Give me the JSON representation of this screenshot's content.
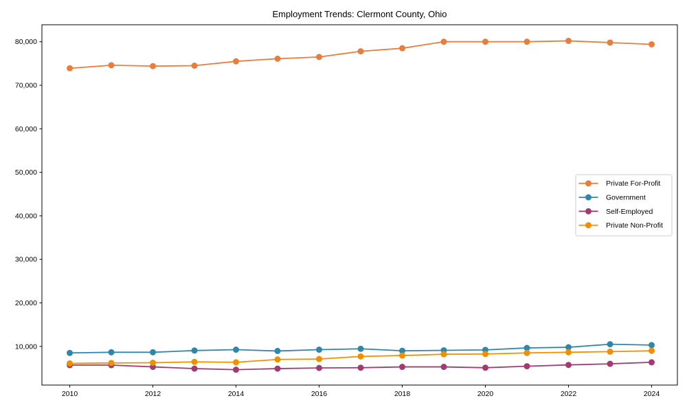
{
  "chart_data": {
    "type": "line",
    "title": "Employment Trends: Clermont County, Ohio",
    "xlabel": "",
    "ylabel": "",
    "x": [
      2010,
      2011,
      2012,
      2013,
      2014,
      2015,
      2016,
      2017,
      2018,
      2019,
      2020,
      2021,
      2022,
      2023,
      2024
    ],
    "series": [
      {
        "name": "Private For-Profit",
        "color": "#E87D3C",
        "values": [
          73900,
          74600,
          74400,
          74500,
          75500,
          76100,
          76500,
          77800,
          78500,
          80000,
          80000,
          80000,
          80200,
          79800,
          79400
        ]
      },
      {
        "name": "Government",
        "color": "#2E86AB",
        "values": [
          8500,
          8650,
          8650,
          9050,
          9250,
          8950,
          9250,
          9450,
          9000,
          9100,
          9200,
          9650,
          9800,
          10500,
          10300
        ]
      },
      {
        "name": "Self-Employed",
        "color": "#A23B72",
        "values": [
          5700,
          5700,
          5300,
          4900,
          4650,
          4900,
          5050,
          5100,
          5300,
          5300,
          5100,
          5450,
          5750,
          6000,
          6350
        ]
      },
      {
        "name": "Private Non-Profit",
        "color": "#F18F01",
        "values": [
          6100,
          6200,
          6250,
          6450,
          6350,
          7000,
          7100,
          7700,
          7900,
          8200,
          8250,
          8500,
          8650,
          8800,
          9000
        ]
      }
    ],
    "xticks": [
      2010,
      2012,
      2014,
      2016,
      2018,
      2020,
      2022,
      2024
    ],
    "xtick_labels": [
      "2010",
      "2012",
      "2014",
      "2016",
      "2018",
      "2020",
      "2022",
      "2024"
    ],
    "yticks": [
      10000,
      20000,
      30000,
      40000,
      50000,
      60000,
      70000,
      80000
    ],
    "ytick_labels": [
      "10,000",
      "20,000",
      "30,000",
      "40,000",
      "50,000",
      "60,000",
      "70,000",
      "80,000"
    ],
    "xlim": [
      2009.33,
      2024.62
    ],
    "ylim": [
      1120,
      83900
    ],
    "grid": false,
    "legend": {
      "position": "center-right",
      "items": [
        "Private For-Profit",
        "Government",
        "Self-Employed",
        "Private Non-Profit"
      ]
    },
    "axis_color": "#000000",
    "legend_border_color": "#cccccc",
    "background_color": "#ffffff"
  }
}
